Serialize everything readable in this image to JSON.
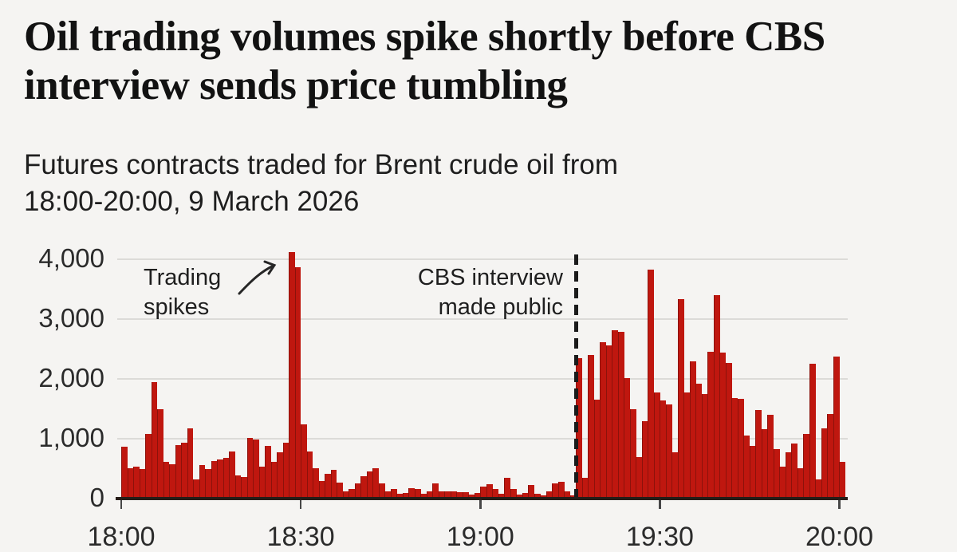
{
  "header": {
    "title_lines": [
      "Oil trading volumes spike shortly before CBS",
      "interview sends price tumbling"
    ],
    "subtitle_lines": [
      "Futures contracts traded for Brent crude oil from",
      "18:00-20:00, 9 March 2026"
    ]
  },
  "chart_data": {
    "type": "bar",
    "title": "Oil trading volumes spike shortly before CBS interview sends price tumbling",
    "subtitle": "Futures contracts traded for Brent crude oil from 18:00-20:00, 9 March 2026",
    "xlabel": "",
    "ylabel": "",
    "x_start": "18:00",
    "x_end": "20:00",
    "bar_interval_minutes": 1,
    "ylim": [
      0,
      4000
    ],
    "grid": "horizontal",
    "legend": "none",
    "bar_color": "#bf170f",
    "y_ticks": [
      {
        "value": 0,
        "label": "0"
      },
      {
        "value": 1000,
        "label": "1,000"
      },
      {
        "value": 2000,
        "label": "2,000"
      },
      {
        "value": 3000,
        "label": "3,000"
      },
      {
        "value": 4000,
        "label": "4,000"
      }
    ],
    "x_ticks": [
      {
        "index": 0,
        "label": "18:00"
      },
      {
        "index": 30,
        "label": "18:30"
      },
      {
        "index": 60,
        "label": "19:00"
      },
      {
        "index": 90,
        "label": "19:30"
      },
      {
        "index": 120,
        "label": "20:00"
      }
    ],
    "values": [
      870,
      510,
      540,
      500,
      1080,
      1950,
      1500,
      620,
      580,
      890,
      930,
      1170,
      320,
      560,
      500,
      630,
      650,
      680,
      790,
      390,
      360,
      1010,
      990,
      530,
      880,
      620,
      770,
      930,
      4120,
      3870,
      1240,
      790,
      510,
      300,
      410,
      480,
      270,
      120,
      160,
      260,
      380,
      460,
      510,
      260,
      120,
      160,
      80,
      90,
      180,
      160,
      80,
      120,
      260,
      120,
      120,
      120,
      110,
      110,
      70,
      100,
      200,
      240,
      160,
      80,
      350,
      160,
      70,
      100,
      230,
      80,
      50,
      120,
      260,
      280,
      120,
      50,
      2350,
      350,
      2400,
      1660,
      2610,
      2560,
      2820,
      2790,
      2010,
      1490,
      690,
      1300,
      3830,
      1780,
      1640,
      1580,
      780,
      3330,
      1780,
      2290,
      1920,
      1750,
      2460,
      3400,
      2440,
      2270,
      1680,
      1670,
      1050,
      880,
      1480,
      1160,
      1400,
      830,
      540,
      770,
      920,
      510,
      1080,
      2250,
      320,
      1170,
      1410,
      2370,
      620
    ],
    "event_line": {
      "index": 76,
      "style": "dashed",
      "color": "#1b1b1b"
    },
    "annotations": [
      {
        "id": "trading-spikes",
        "text_lines": [
          "Trading",
          "spikes"
        ]
      },
      {
        "id": "cbs-interview",
        "text_lines": [
          "CBS interview",
          "made public"
        ]
      }
    ]
  }
}
